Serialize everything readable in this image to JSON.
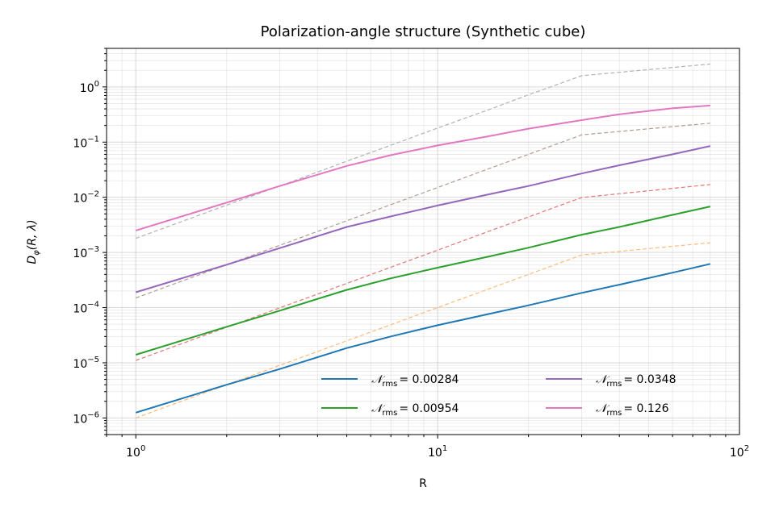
{
  "chart_data": {
    "type": "line",
    "title": "Polarization-angle structure (Synthetic cube)",
    "xlabel": "R",
    "ylabel": {
      "base": "D",
      "sub": "φ",
      "args": "(R, λ)"
    },
    "xscale": "log",
    "yscale": "log",
    "xlim": [
      0.8,
      100
    ],
    "ylim": [
      5e-07,
      5
    ],
    "grid": "both-major-minor",
    "legend_location": "lower-right",
    "legend_columns": 2,
    "x_ticks": [
      {
        "value": 1,
        "base": "10",
        "exp": "0"
      },
      {
        "value": 10,
        "base": "10",
        "exp": "1"
      },
      {
        "value": 100,
        "base": "10",
        "exp": "2"
      }
    ],
    "y_ticks": [
      {
        "value": 1e-06,
        "base": "10",
        "exp": "−6"
      },
      {
        "value": 1e-05,
        "base": "10",
        "exp": "−5"
      },
      {
        "value": 0.0001,
        "base": "10",
        "exp": "−4"
      },
      {
        "value": 0.001,
        "base": "10",
        "exp": "−3"
      },
      {
        "value": 0.01,
        "base": "10",
        "exp": "−2"
      },
      {
        "value": 0.1,
        "base": "10",
        "exp": "−1"
      },
      {
        "value": 1,
        "base": "10",
        "exp": "0"
      }
    ],
    "x": [
      1,
      2,
      3,
      5,
      7,
      10,
      15,
      20,
      30,
      40,
      60,
      80
    ],
    "series": [
      {
        "legend_symbol": "𝒩",
        "legend_sub": "rms",
        "legend_value": "= 0.00284",
        "color": "#1f77b4",
        "values": [
          1.25e-06,
          4e-06,
          7.7e-06,
          1.85e-05,
          3e-05,
          4.8e-05,
          7.8e-05,
          0.00011,
          0.000185,
          0.00026,
          0.00043,
          0.00062
        ],
        "reference_color": "#ffbb78",
        "reference_values": [
          1e-06,
          4e-06,
          9e-06,
          2.5e-05,
          4.9e-05,
          0.0001,
          0.000225,
          0.0004,
          0.0009,
          0.0015
        ]
      },
      {
        "legend_symbol": "𝒩",
        "legend_sub": "rms",
        "legend_value": "= 0.00954",
        "color": "#2ca02c",
        "values": [
          1.4e-05,
          4.5e-05,
          8.8e-05,
          0.00021,
          0.00034,
          0.00053,
          0.00086,
          0.00122,
          0.0021,
          0.0029,
          0.0048,
          0.0068
        ],
        "reference_color": "#e37777",
        "reference_values": [
          1.1e-05,
          4.4e-05,
          9.9e-05,
          0.000275,
          0.00054,
          0.0011,
          0.0025,
          0.0044,
          0.0099,
          0.017
        ]
      },
      {
        "legend_symbol": "𝒩",
        "legend_sub": "rms",
        "legend_value": "= 0.0348",
        "color": "#9467bd",
        "values": [
          0.00019,
          0.0006,
          0.0012,
          0.0029,
          0.0045,
          0.0071,
          0.0115,
          0.016,
          0.027,
          0.038,
          0.06,
          0.085
        ],
        "reference_color": "#b59a92",
        "reference_values": [
          0.00015,
          0.0006,
          0.00135,
          0.00375,
          0.00735,
          0.015,
          0.034,
          0.06,
          0.135,
          0.22
        ]
      },
      {
        "legend_symbol": "𝒩",
        "legend_sub": "rms",
        "legend_value": "= 0.126",
        "color": "#e377c2",
        "values": [
          0.0025,
          0.008,
          0.016,
          0.037,
          0.058,
          0.087,
          0.13,
          0.175,
          0.25,
          0.32,
          0.41,
          0.46
        ],
        "reference_color": "#b2b2b2",
        "reference_values": [
          0.0018,
          0.0072,
          0.016,
          0.045,
          0.088,
          0.18,
          0.4,
          0.72,
          1.6,
          2.6
        ]
      }
    ],
    "reference_x": [
      1,
      2,
      3,
      5,
      7,
      10,
      15,
      20,
      30,
      80
    ]
  }
}
